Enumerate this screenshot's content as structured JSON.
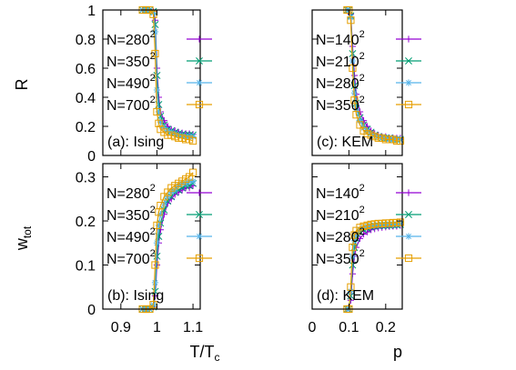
{
  "figure": {
    "ylabel_top": "R",
    "ylabel_bottom_base": "w",
    "ylabel_bottom_sub": "tot",
    "xlabel_left_base": "T/T",
    "xlabel_left_sub": "c",
    "xlabel_right": "p"
  },
  "colors": {
    "N=280^2": "#9400d3",
    "N=350^2": "#009e73",
    "N=490^2": "#56b4e9",
    "N=700^2": "#e69f00",
    "N=140^2": "#9400d3",
    "N=210^2": "#009e73"
  },
  "chart_data": [
    {
      "id": "a",
      "type": "line",
      "annotation": "(a): Ising",
      "xlim": [
        0.85,
        1.12
      ],
      "ylim": [
        0,
        1
      ],
      "xticks": [
        "0.9",
        "1",
        "1.1"
      ],
      "xtick_values": [
        0.9,
        1.0,
        1.1
      ],
      "yticks": [
        "0",
        "0.2",
        "0.4",
        "0.6",
        "0.8",
        "1"
      ],
      "ytick_values": [
        0,
        0.2,
        0.4,
        0.6,
        0.8,
        1.0
      ],
      "show_xtick_labels": false,
      "show_ytick_labels": true,
      "legend_position": "top-left",
      "series": [
        {
          "name": "N=280",
          "exponent": "2",
          "color": "#9400d3",
          "marker": "plus",
          "x": [
            0.96,
            0.97,
            0.98,
            0.99,
            0.995,
            1.0,
            1.005,
            1.01,
            1.02,
            1.03,
            1.04,
            1.05,
            1.06,
            1.07,
            1.08,
            1.09,
            1.1
          ],
          "y": [
            1,
            1,
            1,
            0.99,
            0.93,
            0.6,
            0.4,
            0.3,
            0.24,
            0.2,
            0.18,
            0.17,
            0.16,
            0.155,
            0.15,
            0.15,
            0.145
          ]
        },
        {
          "name": "N=350",
          "exponent": "2",
          "color": "#009e73",
          "marker": "x",
          "x": [
            0.96,
            0.97,
            0.98,
            0.99,
            0.995,
            1.0,
            1.005,
            1.01,
            1.02,
            1.03,
            1.04,
            1.05,
            1.06,
            1.07,
            1.08,
            1.09,
            1.1
          ],
          "y": [
            1,
            1,
            1,
            0.99,
            0.9,
            0.55,
            0.35,
            0.27,
            0.21,
            0.18,
            0.17,
            0.16,
            0.15,
            0.145,
            0.14,
            0.14,
            0.14
          ]
        },
        {
          "name": "N=490",
          "exponent": "2",
          "color": "#56b4e9",
          "marker": "star",
          "x": [
            0.96,
            0.97,
            0.98,
            0.99,
            0.995,
            1.0,
            1.005,
            1.01,
            1.02,
            1.03,
            1.04,
            1.05,
            1.06,
            1.07,
            1.08,
            1.09,
            1.1
          ],
          "y": [
            1,
            1,
            1,
            0.98,
            0.85,
            0.45,
            0.3,
            0.23,
            0.19,
            0.17,
            0.16,
            0.15,
            0.14,
            0.135,
            0.13,
            0.13,
            0.13
          ]
        },
        {
          "name": "N=700",
          "exponent": "2",
          "color": "#e69f00",
          "marker": "square",
          "x": [
            0.96,
            0.97,
            0.98,
            0.99,
            0.995,
            1.0,
            1.005,
            1.01,
            1.02,
            1.03,
            1.04,
            1.05,
            1.06,
            1.07,
            1.08,
            1.09,
            1.1
          ],
          "y": [
            1,
            1,
            1,
            0.97,
            0.7,
            0.3,
            0.22,
            0.18,
            0.16,
            0.14,
            0.14,
            0.13,
            0.12,
            0.12,
            0.11,
            0.11,
            0.1
          ]
        }
      ]
    },
    {
      "id": "c",
      "type": "line",
      "annotation": "(c): KEM",
      "xlim": [
        0,
        0.245
      ],
      "ylim": [
        0,
        1
      ],
      "xticks": [
        "0",
        "0.1",
        "0.2"
      ],
      "xtick_values": [
        0,
        0.1,
        0.2
      ],
      "yticks": [
        "0",
        "0.2",
        "0.4",
        "0.6",
        "0.8",
        "1"
      ],
      "ytick_values": [
        0,
        0.2,
        0.4,
        0.6,
        0.8,
        1.0
      ],
      "show_xtick_labels": false,
      "show_ytick_labels": false,
      "legend_position": "top-left",
      "series": [
        {
          "name": "N=140",
          "exponent": "2",
          "color": "#9400d3",
          "marker": "plus",
          "x": [
            0.095,
            0.1,
            0.105,
            0.11,
            0.115,
            0.12,
            0.13,
            0.14,
            0.15,
            0.16,
            0.17,
            0.18,
            0.19,
            0.2,
            0.21,
            0.22,
            0.23,
            0.24
          ],
          "y": [
            1,
            1,
            0.97,
            0.75,
            0.55,
            0.42,
            0.3,
            0.24,
            0.2,
            0.17,
            0.15,
            0.14,
            0.13,
            0.13,
            0.12,
            0.12,
            0.12,
            0.12
          ]
        },
        {
          "name": "N=210",
          "exponent": "2",
          "color": "#009e73",
          "marker": "x",
          "x": [
            0.095,
            0.1,
            0.105,
            0.11,
            0.115,
            0.12,
            0.13,
            0.14,
            0.15,
            0.16,
            0.17,
            0.18,
            0.19,
            0.2,
            0.21,
            0.22,
            0.23,
            0.24
          ],
          "y": [
            1,
            1,
            0.96,
            0.7,
            0.48,
            0.36,
            0.26,
            0.21,
            0.18,
            0.16,
            0.14,
            0.13,
            0.12,
            0.12,
            0.12,
            0.11,
            0.11,
            0.11
          ]
        },
        {
          "name": "N=280",
          "exponent": "2",
          "color": "#56b4e9",
          "marker": "star",
          "x": [
            0.095,
            0.1,
            0.105,
            0.11,
            0.115,
            0.12,
            0.13,
            0.14,
            0.15,
            0.16,
            0.17,
            0.18,
            0.19,
            0.2,
            0.21,
            0.22,
            0.23,
            0.24
          ],
          "y": [
            1,
            1,
            0.95,
            0.65,
            0.43,
            0.32,
            0.24,
            0.19,
            0.17,
            0.15,
            0.14,
            0.13,
            0.12,
            0.12,
            0.11,
            0.11,
            0.11,
            0.11
          ]
        },
        {
          "name": "N=350",
          "exponent": "2",
          "color": "#e69f00",
          "marker": "square",
          "x": [
            0.095,
            0.1,
            0.105,
            0.11,
            0.115,
            0.12,
            0.13,
            0.14,
            0.15,
            0.16,
            0.17,
            0.18,
            0.19,
            0.2,
            0.21,
            0.22,
            0.23,
            0.24
          ],
          "y": [
            1,
            1,
            0.93,
            0.6,
            0.38,
            0.28,
            0.21,
            0.17,
            0.15,
            0.14,
            0.13,
            0.12,
            0.12,
            0.11,
            0.11,
            0.11,
            0.1,
            0.1
          ]
        }
      ]
    },
    {
      "id": "b",
      "type": "line",
      "annotation": "(b): Ising",
      "xlim": [
        0.85,
        1.12
      ],
      "ylim": [
        0,
        0.33
      ],
      "xticks": [
        "0.9",
        "1",
        "1.1"
      ],
      "xtick_values": [
        0.9,
        1.0,
        1.1
      ],
      "yticks": [
        "0",
        "0.1",
        "0.2",
        "0.3"
      ],
      "ytick_values": [
        0,
        0.1,
        0.2,
        0.3
      ],
      "show_xtick_labels": true,
      "show_ytick_labels": true,
      "legend_position": "top-left",
      "series": [
        {
          "name": "N=280",
          "exponent": "2",
          "color": "#9400d3",
          "marker": "plus",
          "x": [
            0.96,
            0.97,
            0.98,
            0.99,
            0.995,
            1.0,
            1.005,
            1.01,
            1.02,
            1.03,
            1.04,
            1.05,
            1.06,
            1.07,
            1.08,
            1.09,
            1.1
          ],
          "y": [
            0,
            0,
            0,
            0.005,
            0.03,
            0.1,
            0.15,
            0.18,
            0.215,
            0.24,
            0.25,
            0.26,
            0.265,
            0.27,
            0.275,
            0.275,
            0.28
          ]
        },
        {
          "name": "N=350",
          "exponent": "2",
          "color": "#009e73",
          "marker": "x",
          "x": [
            0.96,
            0.97,
            0.98,
            0.99,
            0.995,
            1.0,
            1.005,
            1.01,
            1.02,
            1.03,
            1.04,
            1.05,
            1.06,
            1.07,
            1.08,
            1.09,
            1.1
          ],
          "y": [
            0,
            0,
            0,
            0.005,
            0.04,
            0.12,
            0.165,
            0.195,
            0.225,
            0.245,
            0.255,
            0.265,
            0.27,
            0.275,
            0.28,
            0.28,
            0.285
          ]
        },
        {
          "name": "N=490",
          "exponent": "2",
          "color": "#56b4e9",
          "marker": "star",
          "x": [
            0.96,
            0.97,
            0.98,
            0.99,
            0.995,
            1.0,
            1.005,
            1.01,
            1.02,
            1.03,
            1.04,
            1.05,
            1.06,
            1.07,
            1.08,
            1.09,
            1.1
          ],
          "y": [
            0,
            0,
            0,
            0.01,
            0.06,
            0.15,
            0.19,
            0.215,
            0.24,
            0.255,
            0.265,
            0.27,
            0.28,
            0.285,
            0.285,
            0.29,
            0.29
          ]
        },
        {
          "name": "N=700",
          "exponent": "2",
          "color": "#e69f00",
          "marker": "square",
          "x": [
            0.96,
            0.97,
            0.98,
            0.99,
            0.995,
            1.0,
            1.005,
            1.01,
            1.02,
            1.03,
            1.04,
            1.05,
            1.06,
            1.07,
            1.08,
            1.09,
            1.1
          ],
          "y": [
            0,
            0,
            0,
            0.01,
            0.1,
            0.19,
            0.22,
            0.235,
            0.255,
            0.265,
            0.275,
            0.28,
            0.285,
            0.29,
            0.295,
            0.3,
            0.31
          ]
        }
      ]
    },
    {
      "id": "d",
      "type": "line",
      "annotation": "(d): KEM",
      "xlim": [
        0,
        0.245
      ],
      "ylim": [
        0,
        0.33
      ],
      "xticks": [
        "0",
        "0.1",
        "0.2"
      ],
      "xtick_values": [
        0,
        0.1,
        0.2
      ],
      "yticks": [
        "0",
        "0.1",
        "0.2",
        "0.3"
      ],
      "ytick_values": [
        0,
        0.1,
        0.2,
        0.3
      ],
      "show_xtick_labels": true,
      "show_ytick_labels": false,
      "legend_position": "top-left",
      "series": [
        {
          "name": "N=140",
          "exponent": "2",
          "color": "#9400d3",
          "marker": "plus",
          "x": [
            0.095,
            0.1,
            0.105,
            0.11,
            0.115,
            0.12,
            0.13,
            0.14,
            0.15,
            0.16,
            0.17,
            0.18,
            0.19,
            0.2,
            0.21,
            0.22,
            0.23,
            0.24
          ],
          "y": [
            0,
            0,
            0.02,
            0.08,
            0.12,
            0.14,
            0.16,
            0.17,
            0.175,
            0.18,
            0.182,
            0.184,
            0.185,
            0.186,
            0.187,
            0.188,
            0.188,
            0.19
          ]
        },
        {
          "name": "N=210",
          "exponent": "2",
          "color": "#009e73",
          "marker": "x",
          "x": [
            0.095,
            0.1,
            0.105,
            0.11,
            0.115,
            0.12,
            0.13,
            0.14,
            0.15,
            0.16,
            0.17,
            0.18,
            0.19,
            0.2,
            0.21,
            0.22,
            0.23,
            0.24
          ],
          "y": [
            0,
            0,
            0.03,
            0.1,
            0.14,
            0.16,
            0.175,
            0.18,
            0.183,
            0.186,
            0.188,
            0.189,
            0.19,
            0.19,
            0.19,
            0.191,
            0.191,
            0.192
          ]
        },
        {
          "name": "N=280",
          "exponent": "2",
          "color": "#56b4e9",
          "marker": "star",
          "x": [
            0.095,
            0.1,
            0.105,
            0.11,
            0.115,
            0.12,
            0.13,
            0.14,
            0.15,
            0.16,
            0.17,
            0.18,
            0.19,
            0.2,
            0.21,
            0.22,
            0.23,
            0.24
          ],
          "y": [
            0,
            0,
            0.04,
            0.12,
            0.155,
            0.17,
            0.18,
            0.185,
            0.188,
            0.19,
            0.19,
            0.191,
            0.192,
            0.192,
            0.193,
            0.193,
            0.193,
            0.194
          ]
        },
        {
          "name": "N=350",
          "exponent": "2",
          "color": "#e69f00",
          "marker": "square",
          "x": [
            0.095,
            0.1,
            0.105,
            0.11,
            0.115,
            0.12,
            0.13,
            0.14,
            0.15,
            0.16,
            0.17,
            0.18,
            0.19,
            0.2,
            0.21,
            0.22,
            0.23,
            0.24
          ],
          "y": [
            0,
            0,
            0.05,
            0.14,
            0.168,
            0.178,
            0.185,
            0.188,
            0.19,
            0.192,
            0.193,
            0.194,
            0.194,
            0.195,
            0.195,
            0.196,
            0.196,
            0.197
          ]
        }
      ]
    }
  ]
}
